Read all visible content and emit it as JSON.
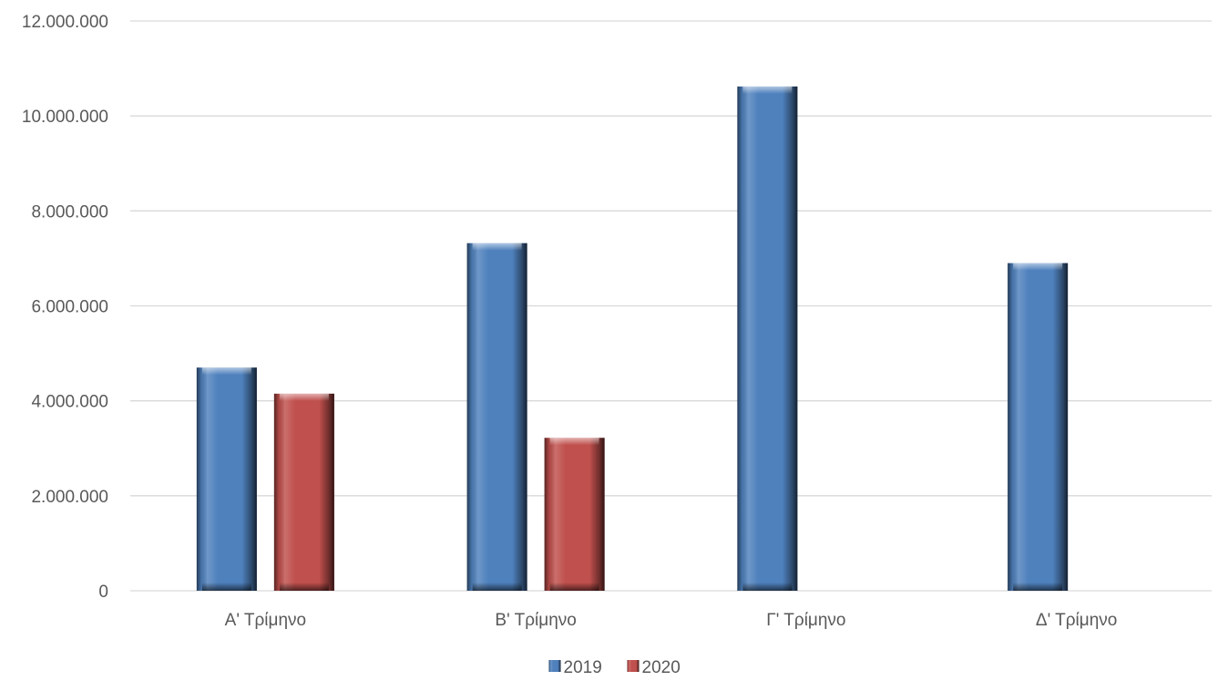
{
  "chart_data": {
    "type": "bar",
    "title": "",
    "xlabel": "",
    "ylabel": "",
    "categories": [
      "Α' Τρίμηνο",
      "Β' Τρίμηνο",
      "Γ' Τρίμηνο",
      "Δ' Τρίμηνο"
    ],
    "series": [
      {
        "name": "2019",
        "color": "#4f81bd",
        "values": [
          4700000,
          7320000,
          10620000,
          6900000
        ]
      },
      {
        "name": "2020",
        "color": "#c0504d",
        "values": [
          4150000,
          3220000,
          null,
          null
        ]
      }
    ],
    "ylim": [
      0,
      12000000
    ],
    "yticks": [
      0,
      2000000,
      4000000,
      6000000,
      8000000,
      10000000,
      12000000
    ],
    "ytick_labels": [
      "0",
      "2.000.000",
      "4.000.000",
      "6.000.000",
      "8.000.000",
      "10.000.000",
      "12.000.000"
    ],
    "grid": true,
    "legend_position": "bottom"
  }
}
